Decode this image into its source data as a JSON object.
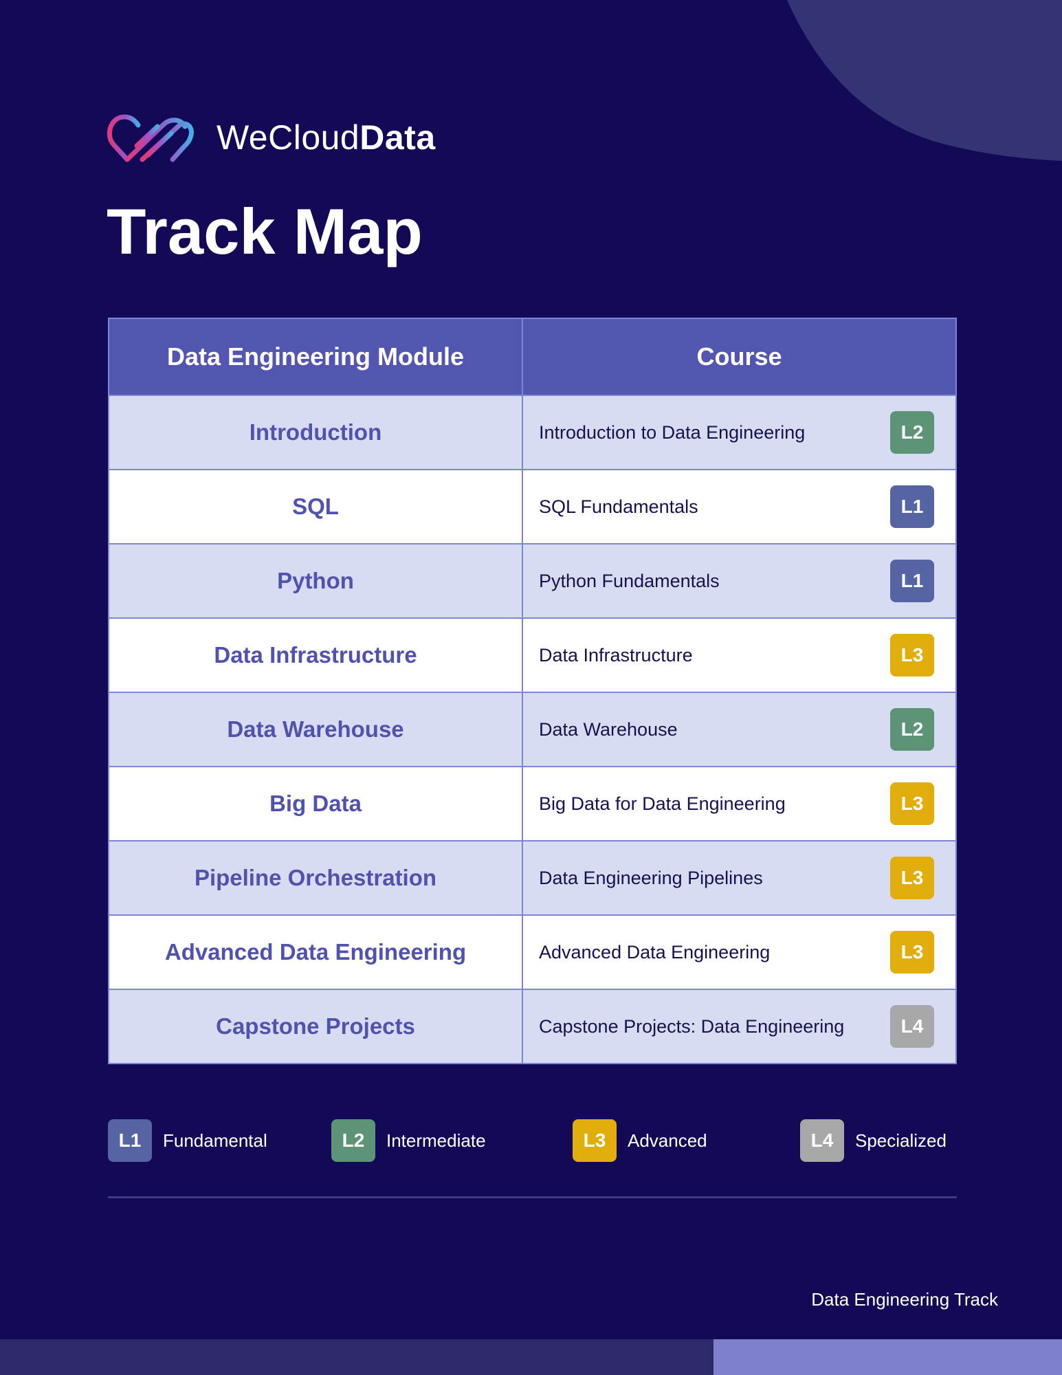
{
  "brand": {
    "name_regular": "WeCloud",
    "name_bold": "Data"
  },
  "page": {
    "title": "Track Map",
    "footer": "Data Engineering Track"
  },
  "table": {
    "headers": [
      "Data Engineering Module",
      "Course"
    ],
    "rows": [
      {
        "module": "Introduction",
        "course": "Introduction to Data Engineering",
        "level": "L2"
      },
      {
        "module": "SQL",
        "course": "SQL Fundamentals",
        "level": "L1"
      },
      {
        "module": "Python",
        "course": "Python Fundamentals",
        "level": "L1"
      },
      {
        "module": "Data Infrastructure",
        "course": "Data Infrastructure",
        "level": "L3"
      },
      {
        "module": "Data Warehouse",
        "course": "Data Warehouse",
        "level": "L2"
      },
      {
        "module": "Big Data",
        "course": "Big Data for Data Engineering",
        "level": "L3"
      },
      {
        "module": "Pipeline Orchestration",
        "course": "Data Engineering Pipelines",
        "level": "L3"
      },
      {
        "module": "Advanced Data Engineering",
        "course": "Advanced Data Engineering",
        "level": "L3"
      },
      {
        "module": "Capstone Projects",
        "course": "Capstone Projects: Data Engineering",
        "level": "L4"
      }
    ]
  },
  "legend": [
    {
      "level": "L1",
      "label": "Fundamental"
    },
    {
      "level": "L2",
      "label": "Intermediate"
    },
    {
      "level": "L3",
      "label": "Advanced"
    },
    {
      "level": "L4",
      "label": "Specialized"
    }
  ],
  "level_colors": {
    "L1": "#5565a3",
    "L2": "#5e9476",
    "L3": "#e0ad0b",
    "L4": "#a8a8a8"
  },
  "colors": {
    "background": "#120a57",
    "header_row": "#5256b0",
    "shaded_row": "#d7dcf2",
    "module_text": "#5152ae"
  }
}
